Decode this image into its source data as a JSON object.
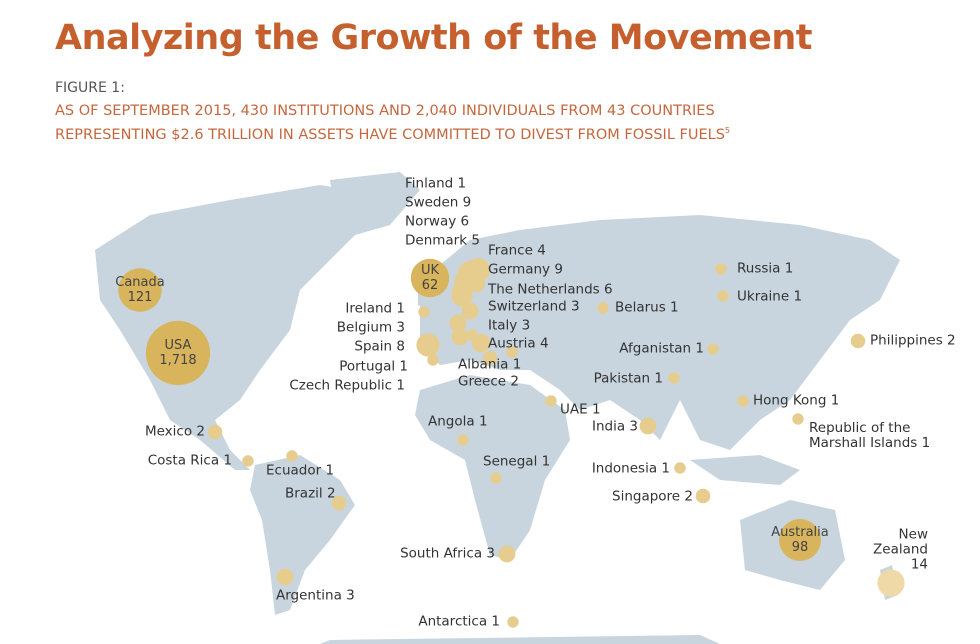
{
  "header": {
    "title": "Analyzing the Growth of the Movement",
    "figure_label": "FIGURE 1:",
    "subtitle_lines": [
      "AS OF SEPTEMBER 2015, 430 INSTITUTIONS AND 2,040 INDIVIDUALS FROM 43 COUNTRIES",
      "REPRESENTING $2.6 TRILLION IN ASSETS HAVE COMMITTED TO DIVEST FROM FOSSIL FUELS"
    ],
    "footnote_marker": "5"
  },
  "countries": [
    {
      "name": "Canada",
      "value": 121
    },
    {
      "name": "USA",
      "value": 1718,
      "label": "1,718"
    },
    {
      "name": "UK",
      "value": 62
    },
    {
      "name": "Australia",
      "value": 98
    },
    {
      "name": "Finland",
      "value": 1
    },
    {
      "name": "Sweden",
      "value": 9
    },
    {
      "name": "Norway",
      "value": 6
    },
    {
      "name": "Denmark",
      "value": 5
    },
    {
      "name": "France",
      "value": 4
    },
    {
      "name": "Germany",
      "value": 9
    },
    {
      "name": "The Netherlands",
      "value": 6
    },
    {
      "name": "Switzerland",
      "value": 3
    },
    {
      "name": "Belarus",
      "value": 1
    },
    {
      "name": "Ireland",
      "value": 1
    },
    {
      "name": "Belgium",
      "value": 3
    },
    {
      "name": "Spain",
      "value": 8
    },
    {
      "name": "Portugal",
      "value": 1
    },
    {
      "name": "Czech Republic",
      "value": 1
    },
    {
      "name": "Italy",
      "value": 3
    },
    {
      "name": "Austria",
      "value": 4
    },
    {
      "name": "Albania",
      "value": 1
    },
    {
      "name": "Greece",
      "value": 2
    },
    {
      "name": "Russia",
      "value": 1
    },
    {
      "name": "Ukraine",
      "value": 1
    },
    {
      "name": "Afganistan",
      "value": 1
    },
    {
      "name": "Philippines",
      "value": 2
    },
    {
      "name": "Pakistan",
      "value": 1
    },
    {
      "name": "Hong Kong",
      "value": 1
    },
    {
      "name": "UAE",
      "value": 1
    },
    {
      "name": "India",
      "value": 3
    },
    {
      "name": "Republic of the Marshall Islands",
      "value": 1
    },
    {
      "name": "Angola",
      "value": 1
    },
    {
      "name": "Mexico",
      "value": 2
    },
    {
      "name": "Costa Rica",
      "value": 1
    },
    {
      "name": "Ecuador",
      "value": 1
    },
    {
      "name": "Senegal",
      "value": 1
    },
    {
      "name": "Indonesia",
      "value": 1
    },
    {
      "name": "Brazil",
      "value": 2
    },
    {
      "name": "Singapore",
      "value": 2
    },
    {
      "name": "New Zealand",
      "value": 14
    },
    {
      "name": "South Africa",
      "value": 3
    },
    {
      "name": "Argentina",
      "value": 3
    },
    {
      "name": "Antarctica",
      "value": 1
    }
  ]
}
